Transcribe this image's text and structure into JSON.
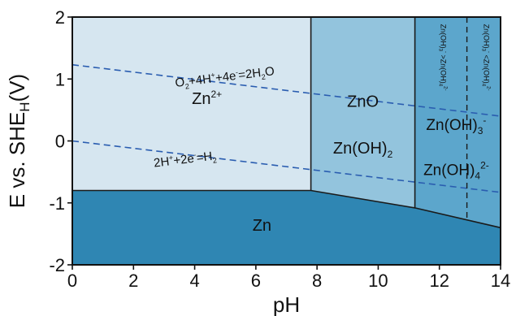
{
  "chart_data": {
    "type": "area",
    "xlabel": "pH",
    "ylabel": {
      "main": "E vs. SHE",
      "sub": "H",
      "unit": "(V)"
    },
    "xlim": [
      0,
      14
    ],
    "ylim": [
      -2,
      2
    ],
    "xticks": [
      0,
      2,
      4,
      6,
      8,
      10,
      12,
      14
    ],
    "yticks": [
      -2,
      -1,
      0,
      1,
      2
    ],
    "colors": {
      "zn2plus_region": "#d6e6f0",
      "zno_region": "#93c4dd",
      "hydroxo_region": "#5ca6cc",
      "zn_region": "#2f86b3",
      "boundary": "#1a1a1a",
      "water_line": "#2a5db0"
    },
    "boundaries": {
      "zn_deposition": [
        [
          0,
          -0.8
        ],
        [
          7.8,
          -0.8
        ],
        [
          11.2,
          -1.08
        ],
        [
          14,
          -1.4
        ]
      ],
      "zn2plus_zno": [
        [
          7.8,
          2.0
        ],
        [
          7.8,
          -0.8
        ]
      ],
      "zno_zincate": [
        [
          11.2,
          2.0
        ],
        [
          11.2,
          -1.08
        ]
      ],
      "zincate_split": [
        [
          12.9,
          2.0
        ],
        [
          12.9,
          -1.25
        ]
      ]
    },
    "water_lines": [
      {
        "label": {
          "parts": [
            [
              "O",
              ""
            ],
            [
              "2",
              "sub"
            ],
            [
              "+4H",
              ""
            ],
            [
              "+",
              "sup"
            ],
            [
              "+4e",
              ""
            ],
            [
              "-",
              "sup"
            ],
            [
              "=2H",
              ""
            ],
            [
              "2",
              "sub"
            ],
            [
              "O",
              ""
            ]
          ]
        },
        "points": [
          [
            0,
            1.23
          ],
          [
            14,
            0.4
          ]
        ]
      },
      {
        "label": {
          "parts": [
            [
              "2H",
              ""
            ],
            [
              "+",
              "sup"
            ],
            [
              "+2e",
              ""
            ],
            [
              "-",
              "sup"
            ],
            [
              "=H",
              ""
            ],
            [
              "2",
              "sub"
            ]
          ]
        },
        "points": [
          [
            0,
            0.0
          ],
          [
            14,
            -0.83
          ]
        ]
      }
    ],
    "regions": [
      {
        "parts": [
          [
            "Zn",
            ""
          ],
          [
            "2+",
            "sup"
          ]
        ],
        "x": 4.4,
        "y": 0.6,
        "size": 20
      },
      {
        "parts": [
          [
            "ZnO",
            ""
          ]
        ],
        "x": 9.5,
        "y": 0.55,
        "size": 20
      },
      {
        "parts": [
          [
            "Zn(OH)",
            ""
          ],
          [
            "2",
            "sub"
          ]
        ],
        "x": 9.5,
        "y": -0.2,
        "size": 20
      },
      {
        "parts": [
          [
            "Zn(OH)",
            ""
          ],
          [
            "3",
            "sub"
          ],
          [
            "-",
            "sup"
          ]
        ],
        "x": 12.55,
        "y": 0.18,
        "size": 19
      },
      {
        "parts": [
          [
            "Zn(OH)",
            ""
          ],
          [
            "4",
            "sub"
          ],
          [
            "2-",
            "sup"
          ]
        ],
        "x": 12.55,
        "y": -0.55,
        "size": 19
      },
      {
        "parts": [
          [
            "Zn",
            ""
          ]
        ],
        "x": 6.2,
        "y": -1.45,
        "size": 20
      }
    ],
    "vertical_labels": [
      {
        "parts": [
          [
            "Zn(OH)",
            ""
          ],
          [
            "3",
            "sub"
          ],
          [
            "-",
            "sup"
          ],
          [
            " >Zn(OH)",
            ""
          ],
          [
            "4",
            "sub"
          ],
          [
            "2-",
            "sup"
          ]
        ],
        "x": 12.05,
        "y": 1.35
      },
      {
        "parts": [
          [
            "Zn(OH)",
            ""
          ],
          [
            "3",
            "sub"
          ],
          [
            "-",
            "sup"
          ],
          [
            " <Zn(OH)",
            ""
          ],
          [
            "4",
            "sub"
          ],
          [
            "2-",
            "sup"
          ]
        ],
        "x": 13.45,
        "y": 1.35
      }
    ]
  }
}
